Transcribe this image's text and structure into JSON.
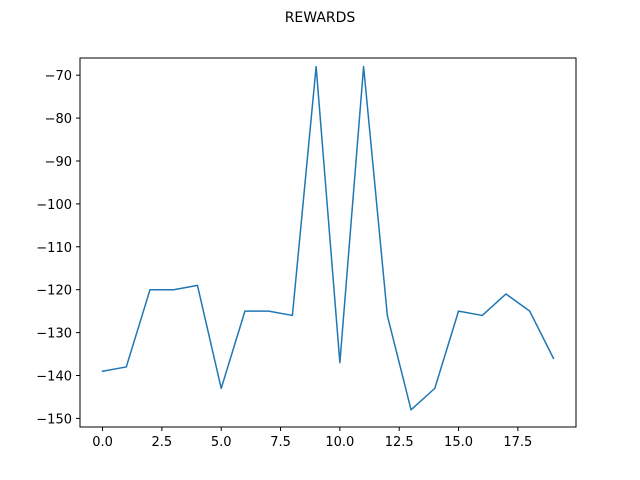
{
  "chart_data": {
    "type": "line",
    "title": "REWARDS",
    "xlabel": "",
    "ylabel": "",
    "xlim": [
      -0.95,
      19.95
    ],
    "ylim": [
      -152,
      -66
    ],
    "x_ticks": [
      0.0,
      2.5,
      5.0,
      7.5,
      10.0,
      12.5,
      15.0,
      17.5
    ],
    "x_tick_labels": [
      "0.0",
      "2.5",
      "5.0",
      "7.5",
      "10.0",
      "12.5",
      "15.0",
      "17.5"
    ],
    "y_ticks": [
      -70,
      -80,
      -90,
      -100,
      -110,
      -120,
      -130,
      -140,
      -150
    ],
    "y_tick_labels": [
      "−70",
      "−80",
      "−90",
      "−100",
      "−110",
      "−120",
      "−130",
      "−140",
      "−150"
    ],
    "grid": false,
    "legend": "none",
    "series": [
      {
        "color": "#1f77b4",
        "x": [
          0,
          1,
          2,
          3,
          4,
          5,
          6,
          7,
          8,
          9,
          10,
          11,
          12,
          13,
          14,
          15,
          16,
          17,
          18,
          19
        ],
        "y": [
          -139,
          -138,
          -120,
          -120,
          -119,
          -143,
          -125,
          -125,
          -126,
          -68,
          -137,
          -68,
          -126,
          -148,
          -143,
          -125,
          -126,
          -121,
          -125,
          -136
        ]
      }
    ]
  }
}
